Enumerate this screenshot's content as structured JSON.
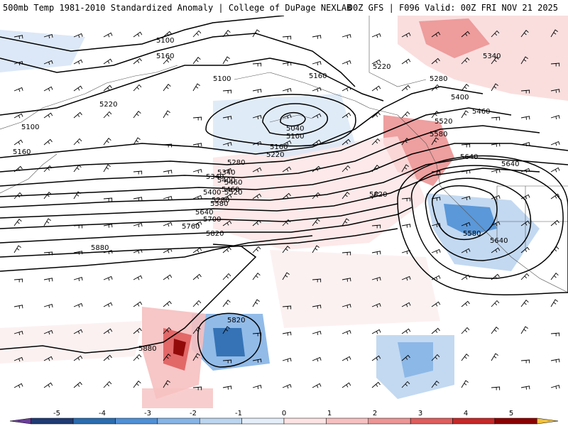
{
  "header": {
    "left_title": "500mb Temp 1981-2010 Standardized Anomaly | College of DuPage NEXLAB",
    "right_title": "00Z GFS | F096 Valid: 00Z FRI NOV 21 2025"
  },
  "colorbar": {
    "ticks": [
      "-5",
      "-4",
      "-3",
      "-2",
      "-1",
      "0",
      "1",
      "2",
      "3",
      "4",
      "5"
    ],
    "colors": [
      "#6a3d9a",
      "#1f3b73",
      "#2b6cb0",
      "#4f90d6",
      "#86b4e6",
      "#bcd5f0",
      "#e4eef9",
      "#fde3e3",
      "#f6c0c0",
      "#ec9595",
      "#df5d5d",
      "#c62828",
      "#8b0000",
      "#f2c13c"
    ]
  },
  "contour_labels": [
    "5100",
    "5160",
    "5100",
    "5160",
    "5220",
    "5280",
    "5340",
    "5400",
    "5460",
    "5100",
    "5160",
    "5040",
    "5100",
    "5160",
    "5220",
    "5280",
    "5340",
    "5400",
    "5460",
    "5520",
    "5580",
    "5640",
    "5700",
    "5760",
    "5820",
    "5880",
    "5220",
    "5280",
    "5340",
    "5400",
    "5460",
    "5520",
    "5580",
    "5640",
    "5640",
    "5820",
    "5580",
    "5640",
    "5820",
    "5880"
  ]
}
